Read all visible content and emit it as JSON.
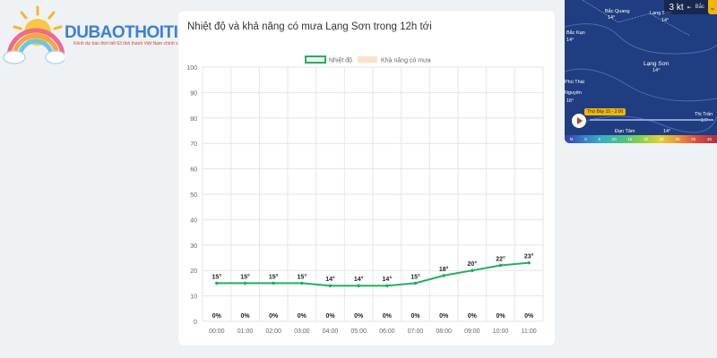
{
  "site": {
    "logo_text": "DUBAOTHOITIET.TV",
    "tagline": "Kênh dự báo thời tiết 63 tỉnh thành Việt Nam chính xác"
  },
  "card": {
    "title": "Nhiệt độ và khả năng có mưa Lạng Sơn trong 12h tới"
  },
  "chart_data": {
    "type": "line",
    "legend": [
      "Nhiệt độ",
      "Khả năng có mưa"
    ],
    "categories": [
      "00:00",
      "01:00",
      "02:00",
      "03:00",
      "04:00",
      "05:00",
      "06:00",
      "07:00",
      "08:00",
      "09:00",
      "10:00",
      "11:00"
    ],
    "series": [
      {
        "name": "Nhiệt độ",
        "values": [
          15,
          15,
          15,
          15,
          14,
          14,
          14,
          15,
          18,
          20,
          22,
          23
        ],
        "labels": [
          "15°",
          "15°",
          "15°",
          "15°",
          "14°",
          "14°",
          "14°",
          "15°",
          "18°",
          "20°",
          "22°",
          "23°"
        ],
        "color": "#27ae60"
      },
      {
        "name": "Khả năng có mưa",
        "values": [
          0,
          0,
          0,
          0,
          0,
          0,
          0,
          0,
          0,
          0,
          0,
          0
        ],
        "labels": [
          "0%",
          "0%",
          "0%",
          "0%",
          "0%",
          "0%",
          "0%",
          "0%",
          "0%",
          "0%",
          "0%",
          "0%"
        ],
        "color": "#fbe3c8"
      }
    ],
    "ylim": [
      0,
      100
    ],
    "yticks": [
      0,
      10,
      20,
      30,
      40,
      50,
      60,
      70,
      80,
      90,
      100
    ],
    "grid": true,
    "legend_position": "top"
  },
  "map": {
    "wind_value": "3 kt",
    "wind_direction": "Bắc",
    "places": [
      "Bắc Quang",
      "Bắc Kạn",
      "Lạng Sơn",
      "Phú Thái",
      "Thị Trấn",
      "Lạng Sơn",
      "Đạn Tâm",
      "Nguyên"
    ],
    "temps": [
      "14°",
      "14°",
      "14°",
      "16°",
      "14°",
      "14°",
      "14°"
    ],
    "time_label": "Thứ Bảy 15 - 2:00",
    "scale_labels": [
      "kt",
      "0",
      "5",
      "10",
      "15",
      "20",
      "25",
      "30",
      "35",
      "40"
    ]
  }
}
